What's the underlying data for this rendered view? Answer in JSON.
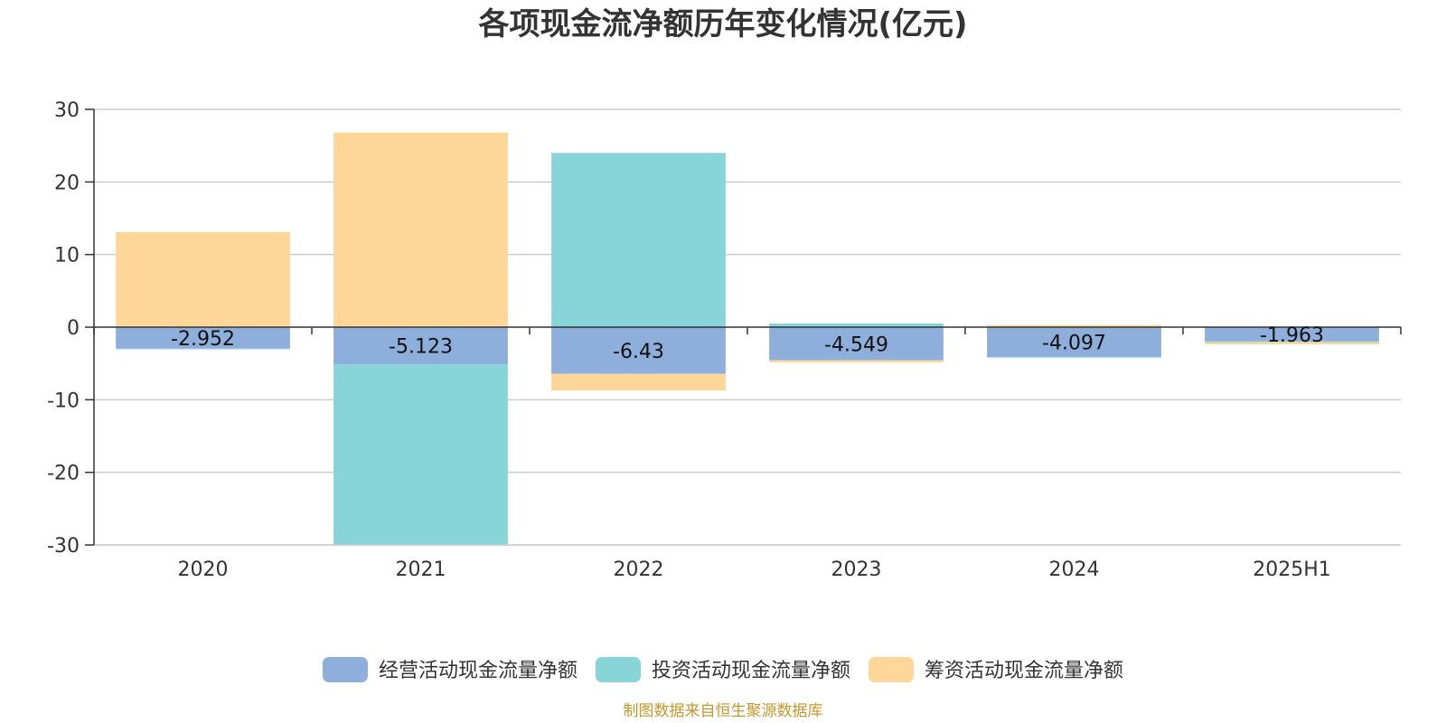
{
  "chart_data": {
    "type": "bar",
    "stacked": true,
    "title": "各项现金流净额历年变化情况(亿元)",
    "categories": [
      "2020",
      "2021",
      "2022",
      "2023",
      "2024",
      "2025H1"
    ],
    "ylim": [
      -30,
      30
    ],
    "yticks": [
      30,
      20,
      10,
      0,
      -10,
      -20,
      -30
    ],
    "grid": true,
    "legend_position": "bottom",
    "series": [
      {
        "name": "经营活动现金流量净额",
        "color": "#8eaedb",
        "values": [
          -2.952,
          -5.123,
          -6.43,
          -4.549,
          -4.097,
          -1.963
        ],
        "labels": [
          "-2.952",
          "-5.123",
          "-6.43",
          "-4.549",
          "-4.097",
          "-1.963"
        ]
      },
      {
        "name": "投资活动现金流量净额",
        "color": "#87d5d9",
        "values": [
          -0.1,
          -24.8,
          24.0,
          0.5,
          -0.1,
          -0.1
        ]
      },
      {
        "name": "筹资活动现金流量净额",
        "color": "#fed798",
        "values": [
          13.1,
          26.8,
          -2.3,
          -0.3,
          0.3,
          -0.3
        ]
      }
    ],
    "source": "制图数据来自恒生聚源数据库"
  }
}
